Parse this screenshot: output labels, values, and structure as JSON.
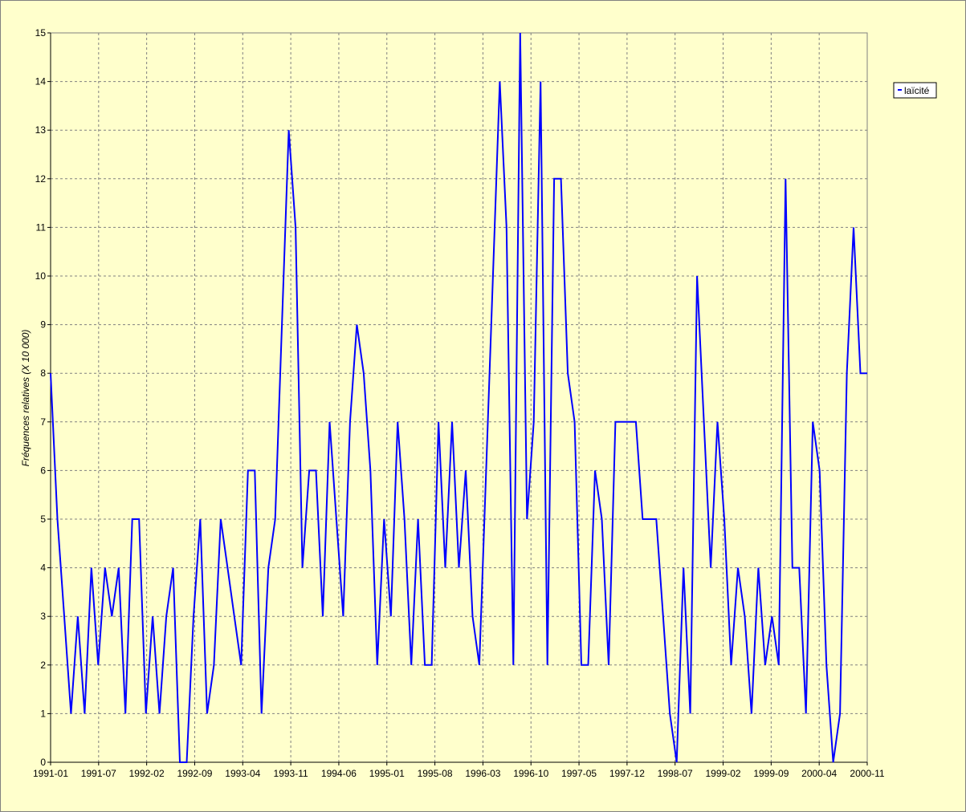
{
  "chart_data": {
    "type": "line",
    "ylabel": "Fréquences relatives (X 10 000)",
    "ylim": [
      0,
      15
    ],
    "yticks": [
      0,
      1,
      2,
      3,
      4,
      5,
      6,
      7,
      8,
      9,
      10,
      11,
      12,
      13,
      14,
      15
    ],
    "xtick_labels": [
      "1991-01",
      "1991-07",
      "1992-02",
      "1992-09",
      "1993-04",
      "1993-11",
      "1994-06",
      "1995-01",
      "1995-08",
      "1996-03",
      "1996-10",
      "1997-05",
      "1997-12",
      "1998-07",
      "1999-02",
      "1999-09",
      "2000-04",
      "2000-11"
    ],
    "grid": true,
    "legend": "top-right",
    "series": [
      {
        "name": "laïcité",
        "color": "#0000ff",
        "values": [
          8,
          5,
          3,
          1,
          3,
          1,
          4,
          2,
          4,
          3,
          4,
          1,
          5,
          5,
          1,
          3,
          1,
          3,
          4,
          0,
          0,
          3,
          5,
          1,
          2,
          5,
          4,
          3,
          2,
          6,
          6,
          1,
          4,
          5,
          9,
          13,
          11,
          4,
          6,
          6,
          3,
          7,
          5,
          3,
          7,
          9,
          8,
          6,
          2,
          5,
          3,
          7,
          5,
          2,
          5,
          2,
          2,
          7,
          4,
          7,
          4,
          6,
          3,
          2,
          6,
          10,
          14,
          11,
          2,
          15,
          5,
          7,
          14,
          2,
          12,
          12,
          8,
          7,
          2,
          2,
          6,
          5,
          2,
          7,
          7,
          7,
          7,
          5,
          5,
          5,
          3,
          1,
          0,
          4,
          1,
          10,
          7,
          4,
          7,
          5,
          2,
          4,
          3,
          1,
          4,
          2,
          3,
          2,
          12,
          4,
          4,
          1,
          7,
          6,
          2,
          0,
          1,
          8,
          11,
          8,
          8
        ]
      }
    ]
  },
  "legend": {
    "label": "laïcité"
  }
}
